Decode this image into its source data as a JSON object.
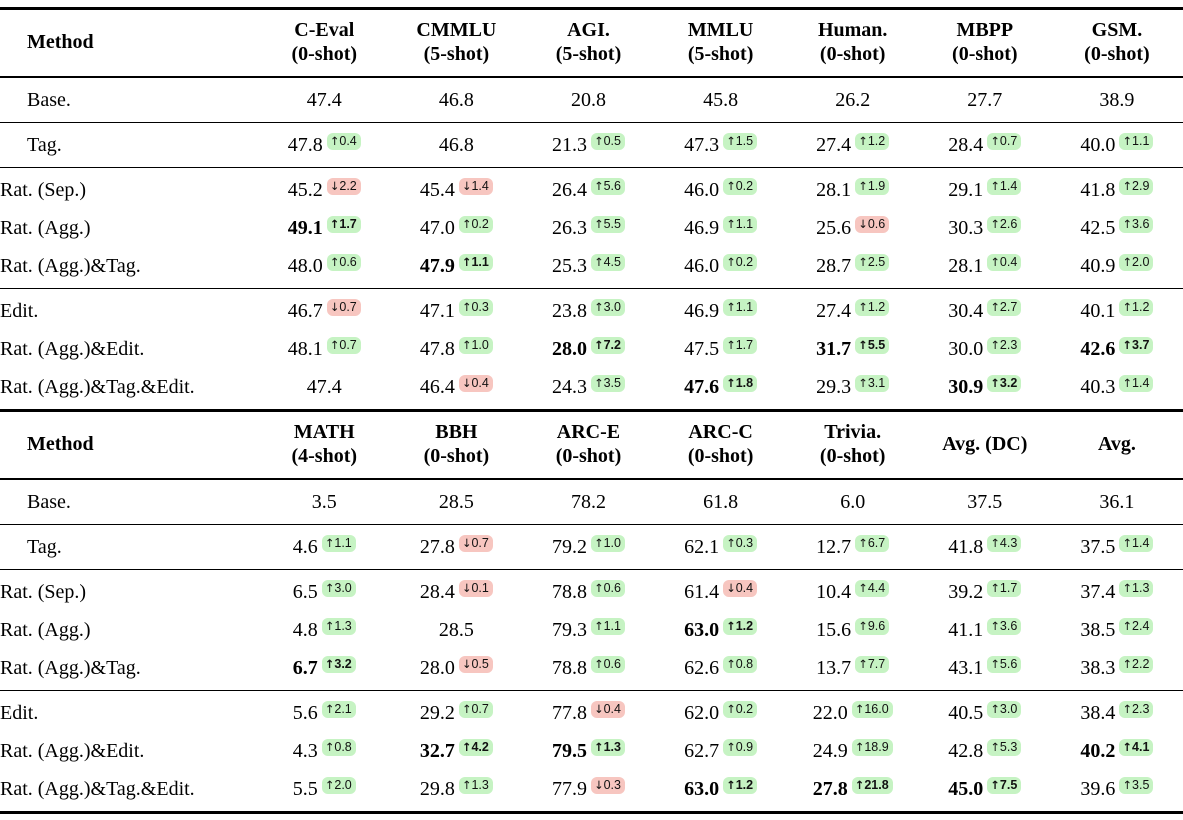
{
  "colors": {
    "delta_up_bg": "#c6f3c3",
    "delta_down_bg": "#f7c6c0",
    "rule": "#000000"
  },
  "delta_arrows": {
    "up": "↑",
    "down": "↓"
  },
  "tables": [
    {
      "name": "benchmarks-1",
      "header": {
        "method": "Method",
        "cols": [
          {
            "label": "C-Eval",
            "sub": "(0-shot)"
          },
          {
            "label": "CMMLU",
            "sub": "(5-shot)"
          },
          {
            "label": "AGI.",
            "sub": "(5-shot)"
          },
          {
            "label": "MMLU",
            "sub": "(5-shot)"
          },
          {
            "label": "Human.",
            "sub": "(0-shot)"
          },
          {
            "label": "MBPP",
            "sub": "(0-shot)"
          },
          {
            "label": "GSM.",
            "sub": "(0-shot)"
          }
        ]
      },
      "groups": [
        [
          {
            "m": "Base.",
            "c": [
              {
                "v": "47.4"
              },
              {
                "v": "46.8"
              },
              {
                "v": "20.8"
              },
              {
                "v": "45.8"
              },
              {
                "v": "26.2"
              },
              {
                "v": "27.7"
              },
              {
                "v": "38.9"
              }
            ]
          }
        ],
        [
          {
            "m": "Tag.",
            "c": [
              {
                "v": "47.8",
                "dir": "up",
                "d": "0.4"
              },
              {
                "v": "46.8"
              },
              {
                "v": "21.3",
                "dir": "up",
                "d": "0.5"
              },
              {
                "v": "47.3",
                "dir": "up",
                "d": "1.5"
              },
              {
                "v": "27.4",
                "dir": "up",
                "d": "1.2"
              },
              {
                "v": "28.4",
                "dir": "up",
                "d": "0.7"
              },
              {
                "v": "40.0",
                "dir": "up",
                "d": "1.1"
              }
            ]
          }
        ],
        [
          {
            "m": "Rat. (Sep.)",
            "c": [
              {
                "v": "45.2",
                "dir": "down",
                "d": "2.2"
              },
              {
                "v": "45.4",
                "dir": "down",
                "d": "1.4"
              },
              {
                "v": "26.4",
                "dir": "up",
                "d": "5.6"
              },
              {
                "v": "46.0",
                "dir": "up",
                "d": "0.2"
              },
              {
                "v": "28.1",
                "dir": "up",
                "d": "1.9"
              },
              {
                "v": "29.1",
                "dir": "up",
                "d": "1.4"
              },
              {
                "v": "41.8",
                "dir": "up",
                "d": "2.9"
              }
            ]
          },
          {
            "m": "Rat. (Agg.)",
            "c": [
              {
                "v": "49.1",
                "dir": "up",
                "d": "1.7",
                "b": true
              },
              {
                "v": "47.0",
                "dir": "up",
                "d": "0.2"
              },
              {
                "v": "26.3",
                "dir": "up",
                "d": "5.5"
              },
              {
                "v": "46.9",
                "dir": "up",
                "d": "1.1"
              },
              {
                "v": "25.6",
                "dir": "down",
                "d": "0.6"
              },
              {
                "v": "30.3",
                "dir": "up",
                "d": "2.6"
              },
              {
                "v": "42.5",
                "dir": "up",
                "d": "3.6"
              }
            ]
          },
          {
            "m": "Rat. (Agg.)&Tag.",
            "c": [
              {
                "v": "48.0",
                "dir": "up",
                "d": "0.6"
              },
              {
                "v": "47.9",
                "dir": "up",
                "d": "1.1",
                "b": true
              },
              {
                "v": "25.3",
                "dir": "up",
                "d": "4.5"
              },
              {
                "v": "46.0",
                "dir": "up",
                "d": "0.2"
              },
              {
                "v": "28.7",
                "dir": "up",
                "d": "2.5"
              },
              {
                "v": "28.1",
                "dir": "up",
                "d": "0.4"
              },
              {
                "v": "40.9",
                "dir": "up",
                "d": "2.0"
              }
            ]
          }
        ],
        [
          {
            "m": "Edit.",
            "c": [
              {
                "v": "46.7",
                "dir": "down",
                "d": "0.7"
              },
              {
                "v": "47.1",
                "dir": "up",
                "d": "0.3"
              },
              {
                "v": "23.8",
                "dir": "up",
                "d": "3.0"
              },
              {
                "v": "46.9",
                "dir": "up",
                "d": "1.1"
              },
              {
                "v": "27.4",
                "dir": "up",
                "d": "1.2"
              },
              {
                "v": "30.4",
                "dir": "up",
                "d": "2.7"
              },
              {
                "v": "40.1",
                "dir": "up",
                "d": "1.2"
              }
            ]
          },
          {
            "m": "Rat. (Agg.)&Edit.",
            "c": [
              {
                "v": "48.1",
                "dir": "up",
                "d": "0.7"
              },
              {
                "v": "47.8",
                "dir": "up",
                "d": "1.0"
              },
              {
                "v": "28.0",
                "dir": "up",
                "d": "7.2",
                "b": true
              },
              {
                "v": "47.5",
                "dir": "up",
                "d": "1.7"
              },
              {
                "v": "31.7",
                "dir": "up",
                "d": "5.5",
                "b": true
              },
              {
                "v": "30.0",
                "dir": "up",
                "d": "2.3"
              },
              {
                "v": "42.6",
                "dir": "up",
                "d": "3.7",
                "b": true
              }
            ]
          },
          {
            "m": "Rat. (Agg.)&Tag.&Edit.",
            "c": [
              {
                "v": "47.4"
              },
              {
                "v": "46.4",
                "dir": "down",
                "d": "0.4"
              },
              {
                "v": "24.3",
                "dir": "up",
                "d": "3.5"
              },
              {
                "v": "47.6",
                "dir": "up",
                "d": "1.8",
                "b": true
              },
              {
                "v": "29.3",
                "dir": "up",
                "d": "3.1"
              },
              {
                "v": "30.9",
                "dir": "up",
                "d": "3.2",
                "b": true
              },
              {
                "v": "40.3",
                "dir": "up",
                "d": "1.4"
              }
            ]
          }
        ]
      ]
    },
    {
      "name": "benchmarks-2",
      "header": {
        "method": "Method",
        "cols": [
          {
            "label": "MATH",
            "sub": "(4-shot)"
          },
          {
            "label": "BBH",
            "sub": "(0-shot)"
          },
          {
            "label": "ARC-E",
            "sub": "(0-shot)"
          },
          {
            "label": "ARC-C",
            "sub": "(0-shot)"
          },
          {
            "label": "Trivia.",
            "sub": "(0-shot)"
          },
          {
            "label": "Avg. (DC)",
            "sub": ""
          },
          {
            "label": "Avg.",
            "sub": ""
          }
        ]
      },
      "groups": [
        [
          {
            "m": "Base.",
            "c": [
              {
                "v": "3.5"
              },
              {
                "v": "28.5"
              },
              {
                "v": "78.2"
              },
              {
                "v": "61.8"
              },
              {
                "v": "6.0"
              },
              {
                "v": "37.5"
              },
              {
                "v": "36.1"
              }
            ]
          }
        ],
        [
          {
            "m": "Tag.",
            "c": [
              {
                "v": "4.6",
                "dir": "up",
                "d": "1.1"
              },
              {
                "v": "27.8",
                "dir": "down",
                "d": "0.7"
              },
              {
                "v": "79.2",
                "dir": "up",
                "d": "1.0"
              },
              {
                "v": "62.1",
                "dir": "up",
                "d": "0.3"
              },
              {
                "v": "12.7",
                "dir": "up",
                "d": "6.7"
              },
              {
                "v": "41.8",
                "dir": "up",
                "d": "4.3"
              },
              {
                "v": "37.5",
                "dir": "up",
                "d": "1.4"
              }
            ]
          }
        ],
        [
          {
            "m": "Rat. (Sep.)",
            "c": [
              {
                "v": "6.5",
                "dir": "up",
                "d": "3.0"
              },
              {
                "v": "28.4",
                "dir": "down",
                "d": "0.1"
              },
              {
                "v": "78.8",
                "dir": "up",
                "d": "0.6"
              },
              {
                "v": "61.4",
                "dir": "down",
                "d": "0.4"
              },
              {
                "v": "10.4",
                "dir": "up",
                "d": "4.4"
              },
              {
                "v": "39.2",
                "dir": "up",
                "d": "1.7"
              },
              {
                "v": "37.4",
                "dir": "up",
                "d": "1.3"
              }
            ]
          },
          {
            "m": "Rat. (Agg.)",
            "c": [
              {
                "v": "4.8",
                "dir": "up",
                "d": "1.3"
              },
              {
                "v": "28.5"
              },
              {
                "v": "79.3",
                "dir": "up",
                "d": "1.1"
              },
              {
                "v": "63.0",
                "dir": "up",
                "d": "1.2",
                "b": true
              },
              {
                "v": "15.6",
                "dir": "up",
                "d": "9.6"
              },
              {
                "v": "41.1",
                "dir": "up",
                "d": "3.6"
              },
              {
                "v": "38.5",
                "dir": "up",
                "d": "2.4"
              }
            ]
          },
          {
            "m": "Rat. (Agg.)&Tag.",
            "c": [
              {
                "v": "6.7",
                "dir": "up",
                "d": "3.2",
                "b": true
              },
              {
                "v": "28.0",
                "dir": "down",
                "d": "0.5"
              },
              {
                "v": "78.8",
                "dir": "up",
                "d": "0.6"
              },
              {
                "v": "62.6",
                "dir": "up",
                "d": "0.8"
              },
              {
                "v": "13.7",
                "dir": "up",
                "d": "7.7"
              },
              {
                "v": "43.1",
                "dir": "up",
                "d": "5.6"
              },
              {
                "v": "38.3",
                "dir": "up",
                "d": "2.2"
              }
            ]
          }
        ],
        [
          {
            "m": "Edit.",
            "c": [
              {
                "v": "5.6",
                "dir": "up",
                "d": "2.1"
              },
              {
                "v": "29.2",
                "dir": "up",
                "d": "0.7"
              },
              {
                "v": "77.8",
                "dir": "down",
                "d": "0.4"
              },
              {
                "v": "62.0",
                "dir": "up",
                "d": "0.2"
              },
              {
                "v": "22.0",
                "dir": "up",
                "d": "16.0"
              },
              {
                "v": "40.5",
                "dir": "up",
                "d": "3.0"
              },
              {
                "v": "38.4",
                "dir": "up",
                "d": "2.3"
              }
            ]
          },
          {
            "m": "Rat. (Agg.)&Edit.",
            "c": [
              {
                "v": "4.3",
                "dir": "up",
                "d": "0.8"
              },
              {
                "v": "32.7",
                "dir": "up",
                "d": "4.2",
                "b": true
              },
              {
                "v": "79.5",
                "dir": "up",
                "d": "1.3",
                "b": true
              },
              {
                "v": "62.7",
                "dir": "up",
                "d": "0.9"
              },
              {
                "v": "24.9",
                "dir": "up",
                "d": "18.9"
              },
              {
                "v": "42.8",
                "dir": "up",
                "d": "5.3"
              },
              {
                "v": "40.2",
                "dir": "up",
                "d": "4.1",
                "b": true
              }
            ]
          },
          {
            "m": "Rat. (Agg.)&Tag.&Edit.",
            "c": [
              {
                "v": "5.5",
                "dir": "up",
                "d": "2.0"
              },
              {
                "v": "29.8",
                "dir": "up",
                "d": "1.3"
              },
              {
                "v": "77.9",
                "dir": "down",
                "d": "0.3"
              },
              {
                "v": "63.0",
                "dir": "up",
                "d": "1.2",
                "b": true
              },
              {
                "v": "27.8",
                "dir": "up",
                "d": "21.8",
                "b": true
              },
              {
                "v": "45.0",
                "dir": "up",
                "d": "7.5",
                "b": true
              },
              {
                "v": "39.6",
                "dir": "up",
                "d": "3.5"
              }
            ]
          }
        ]
      ]
    }
  ]
}
